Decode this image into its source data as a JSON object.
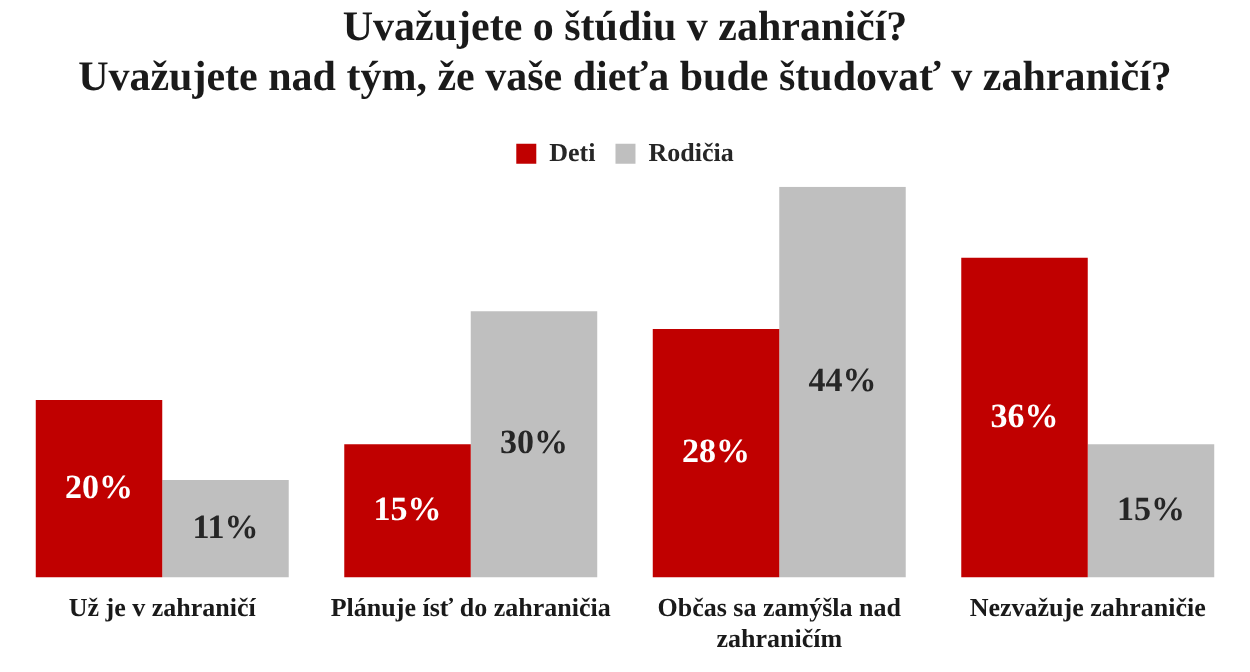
{
  "chart_data": {
    "type": "bar",
    "title": "Uvažujete o štúdiu v zahraničí?\nUvažujete nad tým, že vaše dieťa bude študovať v zahraničí?",
    "categories": [
      "Už je v zahraničí",
      "Plánuje ísť do zahraničia",
      "Občas sa zamýšla nad zahraničím",
      "Nezvažuje zahraničie"
    ],
    "series": [
      {
        "name": "Deti",
        "color": "#c00000",
        "values": [
          20,
          15,
          28,
          36
        ],
        "value_labels": [
          "20%",
          "15%",
          "28%",
          "36%"
        ]
      },
      {
        "name": "Rodičia",
        "color": "#bfbfbf",
        "values": [
          11,
          30,
          44,
          15
        ],
        "value_labels": [
          "11%",
          "30%",
          "44%",
          "15%"
        ]
      }
    ],
    "ylim": [
      0,
      44
    ],
    "tick_labels": "x",
    "legend": "top",
    "grid": false
  }
}
